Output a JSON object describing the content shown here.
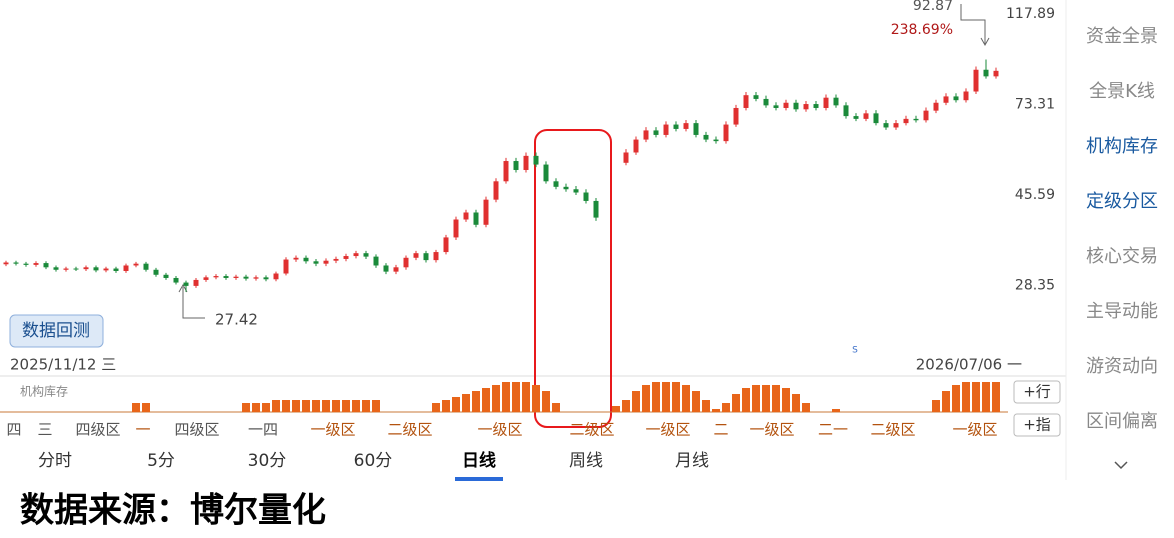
{
  "chart_data": {
    "type": "candlestick",
    "log_y": true,
    "ylim": [
      18.2,
      126.9
    ],
    "yticks": [
      117.89,
      73.31,
      45.59,
      28.35
    ],
    "up_color": "#e03030",
    "down_color": "#1a8a3a",
    "open": [
      31.7,
      32.0,
      31.8,
      31.6,
      31.9,
      31.2,
      30.8,
      31.0,
      30.9,
      31.2,
      30.7,
      31.0,
      30.6,
      31.5,
      31.8,
      30.8,
      30.0,
      29.5,
      28.8,
      28.3,
      29.2,
      29.6,
      29.8,
      29.5,
      29.7,
      29.4,
      29.6,
      29.3,
      30.2,
      32.5,
      32.8,
      32.2,
      31.8,
      32.3,
      32.6,
      33.1,
      33.6,
      33.0,
      31.5,
      30.5,
      31.2,
      32.8,
      33.6,
      32.4,
      33.8,
      36.5,
      40.1,
      41.6,
      39.0,
      44.5,
      49.0,
      54.5,
      52.0,
      56.0,
      53.5,
      49.0,
      47.6,
      47.0,
      46.2,
      44.2,
      null,
      null,
      54.0,
      57.0,
      61.0,
      64.0,
      62.5,
      66.0,
      64.5,
      66.5,
      62.5,
      61.0,
      60.5,
      66.0,
      72.0,
      77.0,
      75.5,
      73.0,
      72.0,
      74.0,
      71.5,
      73.5,
      72.0,
      76.0,
      73.0,
      69.0,
      68.0,
      70.0,
      66.5,
      65.0,
      66.5,
      68.0,
      67.5,
      71.0,
      74.0,
      76.5,
      75.0,
      78.5,
      88.0,
      85.0
    ],
    "close": [
      32.0,
      31.8,
      31.6,
      31.9,
      31.2,
      30.8,
      31.0,
      30.9,
      31.2,
      30.7,
      31.0,
      30.6,
      31.5,
      31.8,
      30.8,
      30.0,
      29.5,
      28.8,
      28.3,
      29.2,
      29.6,
      29.8,
      29.5,
      29.7,
      29.4,
      29.6,
      29.3,
      30.2,
      32.5,
      32.8,
      32.2,
      31.8,
      32.3,
      32.6,
      33.1,
      33.6,
      33.0,
      31.5,
      30.5,
      31.2,
      32.8,
      33.6,
      32.4,
      33.8,
      36.5,
      40.1,
      41.6,
      39.0,
      44.5,
      49.0,
      54.5,
      52.0,
      56.0,
      53.5,
      49.0,
      47.6,
      47.0,
      46.2,
      44.2,
      40.5,
      null,
      null,
      57.0,
      61.0,
      64.0,
      62.5,
      66.0,
      64.5,
      66.5,
      62.5,
      61.0,
      60.5,
      66.0,
      72.0,
      77.0,
      75.5,
      73.0,
      72.0,
      74.0,
      71.5,
      73.5,
      72.0,
      76.0,
      73.0,
      69.0,
      68.0,
      70.0,
      66.5,
      65.0,
      66.5,
      68.0,
      67.5,
      71.0,
      74.0,
      76.5,
      75.0,
      78.5,
      88.0,
      85.0,
      87.5
    ],
    "high": [
      32.3,
      32.3,
      32.1,
      32.2,
      32.2,
      31.5,
      31.3,
      31.3,
      31.5,
      31.5,
      31.3,
      31.3,
      31.8,
      32.1,
      32.1,
      31.1,
      30.3,
      29.8,
      29.1,
      29.5,
      29.9,
      30.1,
      30.1,
      30.0,
      30.0,
      29.9,
      29.9,
      30.5,
      32.9,
      33.2,
      33.2,
      32.6,
      32.7,
      33.0,
      33.5,
      34.0,
      34.0,
      33.4,
      31.9,
      31.6,
      33.2,
      34.0,
      34.0,
      34.2,
      37.0,
      40.7,
      42.2,
      42.2,
      45.2,
      49.8,
      55.4,
      55.4,
      57.0,
      57.0,
      54.4,
      49.8,
      48.4,
      47.8,
      47.0,
      44.9,
      null,
      null,
      58.0,
      62.0,
      65.1,
      65.1,
      67.1,
      67.1,
      67.6,
      67.6,
      63.5,
      62.0,
      67.1,
      73.2,
      78.3,
      78.3,
      76.8,
      74.2,
      75.2,
      75.2,
      74.7,
      74.7,
      77.3,
      77.3,
      74.2,
      70.1,
      71.2,
      71.2,
      67.6,
      67.6,
      69.1,
      69.1,
      72.2,
      75.2,
      77.8,
      77.8,
      79.8,
      89.5,
      92.87,
      89.0
    ],
    "low": [
      31.4,
      31.5,
      31.3,
      31.3,
      30.9,
      30.5,
      30.5,
      30.6,
      30.6,
      30.4,
      30.4,
      30.3,
      30.3,
      31.2,
      30.5,
      29.7,
      29.2,
      28.5,
      27.42,
      28.0,
      28.9,
      29.3,
      29.2,
      29.2,
      29.1,
      29.1,
      29.0,
      29.0,
      29.9,
      32.1,
      31.8,
      31.4,
      31.4,
      31.9,
      32.2,
      32.7,
      32.6,
      31.1,
      30.1,
      30.1,
      30.8,
      32.4,
      32.0,
      32.0,
      33.4,
      36.0,
      39.6,
      38.5,
      38.5,
      43.9,
      48.4,
      51.3,
      51.3,
      52.8,
      48.4,
      47.0,
      46.4,
      45.6,
      43.6,
      39.8,
      null,
      null,
      53.3,
      56.3,
      60.2,
      61.7,
      61.7,
      63.7,
      63.7,
      61.7,
      60.2,
      59.7,
      59.7,
      65.2,
      71.1,
      74.6,
      72.1,
      71.1,
      71.1,
      70.6,
      70.6,
      71.1,
      71.1,
      72.1,
      68.1,
      67.2,
      67.2,
      65.7,
      64.2,
      64.2,
      65.7,
      66.7,
      66.7,
      70.1,
      73.1,
      74.1,
      74.1,
      77.5,
      84.0,
      84.0
    ],
    "annotations": {
      "high": 92.87,
      "change": {
        "value": 238.69,
        "label": "238.69%"
      },
      "low": 27.42,
      "start_date": "2025/11/12 三",
      "end_date": "2026/07/06 一",
      "marker": "S"
    }
  },
  "indicator": {
    "title": "机构库存",
    "color": "#e8651a",
    "ylim": [
      0,
      10
    ],
    "values": [
      0,
      0,
      0,
      0,
      0,
      0,
      0,
      0,
      0,
      0,
      0,
      0,
      0,
      3,
      3,
      0,
      0,
      0,
      0,
      0,
      0,
      0,
      0,
      0,
      3,
      3,
      3,
      4,
      4,
      4,
      4,
      4,
      4,
      4,
      4,
      4,
      4,
      4,
      0,
      0,
      0,
      0,
      0,
      3,
      4,
      5,
      6,
      7,
      8,
      9,
      10,
      10,
      10,
      9,
      7,
      3,
      0,
      0,
      0,
      0,
      0,
      2,
      4,
      7,
      9,
      10,
      10,
      10,
      9,
      7,
      4,
      1,
      3,
      6,
      8,
      9,
      9,
      9,
      8,
      6,
      3,
      0,
      0,
      1,
      0,
      0,
      0,
      0,
      0,
      0,
      0,
      0,
      0,
      4,
      7,
      9,
      10,
      10,
      10,
      10
    ],
    "zones": [
      "四",
      "三",
      "四级区",
      "一",
      "四级区",
      "一四",
      "一级区",
      "二级区",
      "一级区",
      "二级区",
      "一级区",
      "二",
      "一级区",
      "二一",
      "二级区",
      "一级区"
    ]
  },
  "buttons": {
    "backtest": "数据回测",
    "add_row": "+行",
    "add_indicator": "+指"
  },
  "tabs": {
    "items": [
      "分时",
      "5分",
      "30分",
      "60分",
      "日线",
      "周线",
      "月线"
    ],
    "active": 4
  },
  "sidebar": {
    "items": [
      "资金全景",
      "全景K线",
      "机构库存",
      "定级分区",
      "核心交易",
      "主导动能",
      "游资动向",
      "区间偏离"
    ],
    "active": [
      2,
      3
    ]
  },
  "footer": "数据来源：博尔量化"
}
